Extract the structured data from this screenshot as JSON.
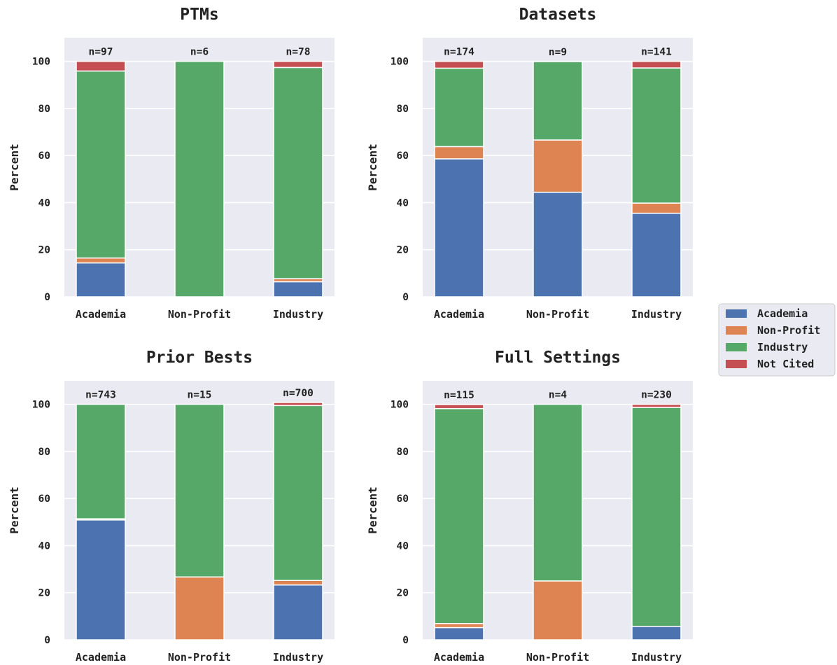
{
  "chart_data": [
    {
      "type": "bar",
      "stacked": true,
      "title": "PTMs",
      "ylabel": "Percent",
      "ylim": [
        0,
        110
      ],
      "yticks": [
        0,
        20,
        40,
        60,
        80,
        100
      ],
      "grid": true,
      "categories": [
        "Academia",
        "Non-Profit",
        "Industry"
      ],
      "counts": [
        "n=97",
        "n=6",
        "n=78"
      ],
      "series": [
        {
          "name": "Academia",
          "values": [
            14.4,
            0,
            6.4
          ]
        },
        {
          "name": "Non-Profit",
          "values": [
            2.1,
            0,
            1.3
          ]
        },
        {
          "name": "Industry",
          "values": [
            79.4,
            100,
            89.7
          ]
        },
        {
          "name": "Not Cited",
          "values": [
            4.1,
            0,
            2.6
          ]
        }
      ]
    },
    {
      "type": "bar",
      "stacked": true,
      "title": "Datasets",
      "ylabel": "Percent",
      "ylim": [
        0,
        110
      ],
      "yticks": [
        0,
        20,
        40,
        60,
        80,
        100
      ],
      "grid": true,
      "categories": [
        "Academia",
        "Non-Profit",
        "Industry"
      ],
      "counts": [
        "n=174",
        "n=9",
        "n=141"
      ],
      "series": [
        {
          "name": "Academia",
          "values": [
            58.6,
            44.4,
            35.5
          ]
        },
        {
          "name": "Non-Profit",
          "values": [
            5.2,
            22.2,
            4.3
          ]
        },
        {
          "name": "Industry",
          "values": [
            33.3,
            33.3,
            57.4
          ]
        },
        {
          "name": "Not Cited",
          "values": [
            2.9,
            0,
            2.8
          ]
        }
      ]
    },
    {
      "type": "bar",
      "stacked": true,
      "title": "Prior Bests",
      "ylabel": "Percent",
      "ylim": [
        0,
        110
      ],
      "yticks": [
        0,
        20,
        40,
        60,
        80,
        100
      ],
      "grid": true,
      "categories": [
        "Academia",
        "Non-Profit",
        "Industry"
      ],
      "counts": [
        "n=743",
        "n=15",
        "n=700"
      ],
      "series": [
        {
          "name": "Academia",
          "values": [
            50.9,
            0,
            23.3
          ]
        },
        {
          "name": "Non-Profit",
          "values": [
            0.5,
            26.7,
            1.9
          ]
        },
        {
          "name": "Industry",
          "values": [
            48.6,
            73.3,
            74.3
          ]
        },
        {
          "name": "Not Cited",
          "values": [
            0,
            0,
            1.3
          ]
        }
      ]
    },
    {
      "type": "bar",
      "stacked": true,
      "title": "Full Settings",
      "ylabel": "Percent",
      "ylim": [
        0,
        110
      ],
      "yticks": [
        0,
        20,
        40,
        60,
        80,
        100
      ],
      "grid": true,
      "categories": [
        "Academia",
        "Non-Profit",
        "Industry"
      ],
      "counts": [
        "n=115",
        "n=4",
        "n=230"
      ],
      "series": [
        {
          "name": "Academia",
          "values": [
            5.2,
            0,
            5.7
          ]
        },
        {
          "name": "Non-Profit",
          "values": [
            1.7,
            25,
            0
          ]
        },
        {
          "name": "Industry",
          "values": [
            91.3,
            75,
            93.0
          ]
        },
        {
          "name": "Not Cited",
          "values": [
            1.7,
            0,
            1.3
          ]
        }
      ]
    }
  ],
  "legend": {
    "placement": "right",
    "items": [
      "Academia",
      "Non-Profit",
      "Industry",
      "Not Cited"
    ]
  },
  "colors": {
    "Academia": "#4c72b0",
    "Non-Profit": "#dd8452",
    "Industry": "#55a868",
    "Not Cited": "#c44e52",
    "panel_background": "#eaeaf2",
    "grid": "#ffffff"
  }
}
